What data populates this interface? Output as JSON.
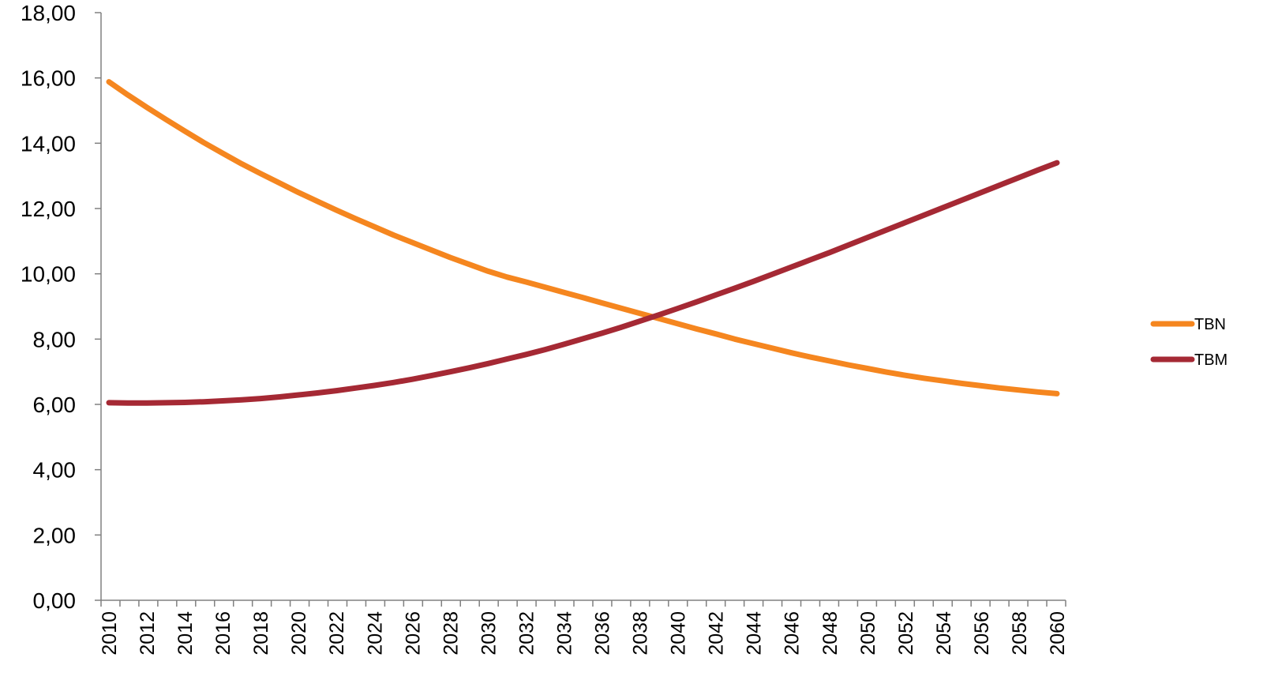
{
  "chart_data": {
    "type": "line",
    "title": "",
    "xlabel": "",
    "ylabel": "",
    "ylim": [
      0,
      18
    ],
    "y_ticks": [
      "0,00",
      "2,00",
      "4,00",
      "6,00",
      "8,00",
      "10,00",
      "12,00",
      "14,00",
      "16,00",
      "18,00"
    ],
    "y_tick_values": [
      0,
      2,
      4,
      6,
      8,
      10,
      12,
      14,
      16,
      18
    ],
    "x": [
      2010,
      2011,
      2012,
      2013,
      2014,
      2015,
      2016,
      2017,
      2018,
      2019,
      2020,
      2021,
      2022,
      2023,
      2024,
      2025,
      2026,
      2027,
      2028,
      2029,
      2030,
      2031,
      2032,
      2033,
      2034,
      2035,
      2036,
      2037,
      2038,
      2039,
      2040,
      2041,
      2042,
      2043,
      2044,
      2045,
      2046,
      2047,
      2048,
      2049,
      2050,
      2051,
      2052,
      2053,
      2054,
      2055,
      2056,
      2057,
      2058,
      2059,
      2060
    ],
    "x_tick_labels": [
      "2010",
      "2012",
      "2014",
      "2016",
      "2018",
      "2020",
      "2022",
      "2024",
      "2026",
      "2028",
      "2030",
      "2032",
      "2034",
      "2036",
      "2038",
      "2040",
      "2042",
      "2044",
      "2046",
      "2048",
      "2050",
      "2052",
      "2054",
      "2056",
      "2058",
      "2060"
    ],
    "grid": false,
    "legend_position": "right",
    "series": [
      {
        "name": "TBN",
        "color": "#F5861F",
        "values": [
          15.88,
          15.48,
          15.1,
          14.73,
          14.37,
          14.02,
          13.69,
          13.37,
          13.07,
          12.78,
          12.49,
          12.22,
          11.95,
          11.69,
          11.44,
          11.19,
          10.96,
          10.73,
          10.5,
          10.29,
          10.08,
          9.9,
          9.75,
          9.59,
          9.43,
          9.27,
          9.11,
          8.95,
          8.79,
          8.63,
          8.47,
          8.31,
          8.16,
          8.0,
          7.86,
          7.72,
          7.58,
          7.45,
          7.33,
          7.21,
          7.1,
          6.99,
          6.89,
          6.8,
          6.72,
          6.64,
          6.57,
          6.5,
          6.44,
          6.38,
          6.33
        ]
      },
      {
        "name": "TBM",
        "color": "#A52934",
        "values": [
          6.05,
          6.04,
          6.04,
          6.05,
          6.06,
          6.08,
          6.11,
          6.14,
          6.18,
          6.23,
          6.29,
          6.35,
          6.42,
          6.5,
          6.58,
          6.67,
          6.77,
          6.88,
          7.0,
          7.12,
          7.25,
          7.39,
          7.53,
          7.68,
          7.84,
          8.01,
          8.18,
          8.36,
          8.55,
          8.74,
          8.94,
          9.14,
          9.35,
          9.56,
          9.77,
          9.99,
          10.21,
          10.43,
          10.65,
          10.88,
          11.11,
          11.34,
          11.57,
          11.8,
          12.03,
          12.26,
          12.49,
          12.72,
          12.95,
          13.18,
          13.4
        ]
      }
    ]
  }
}
